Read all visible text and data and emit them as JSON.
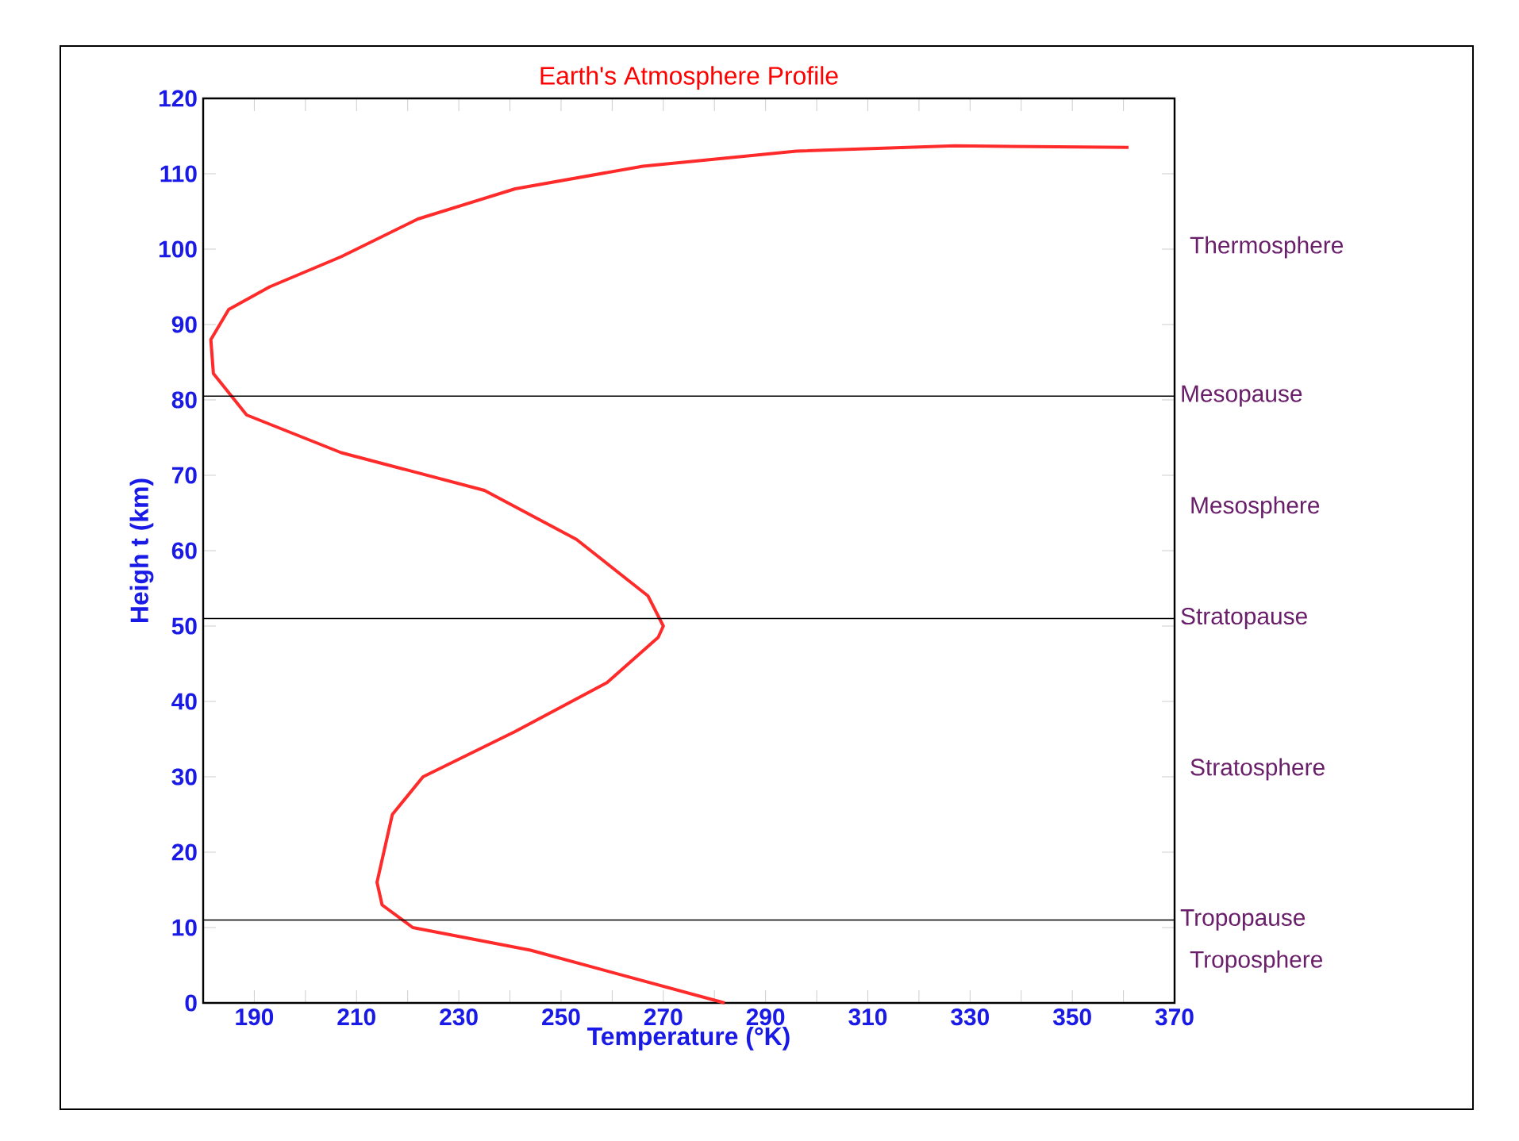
{
  "chart_data": {
    "type": "line",
    "title": "Earth's Atmosphere Profile",
    "xlabel": "Temperature (°K)",
    "ylabel": "Heigh t (km)",
    "xlim": [
      180,
      370
    ],
    "xticks": [
      190,
      210,
      230,
      250,
      270,
      290,
      310,
      330,
      350,
      370
    ],
    "ylim": [
      0,
      120
    ],
    "yticks": [
      0,
      10,
      20,
      30,
      40,
      50,
      60,
      70,
      80,
      90,
      100,
      110,
      120
    ],
    "series": [
      {
        "color": "#ff2a2a",
        "x": [
          282,
          244,
          221,
          215,
          214,
          217,
          223,
          241,
          259,
          269,
          270,
          267,
          253,
          235,
          207,
          188.5,
          182,
          181.5,
          185,
          193,
          207,
          222,
          241,
          266,
          296,
          327,
          361
        ],
        "values": [
          0,
          7,
          10,
          13,
          16,
          25,
          30,
          36,
          42.5,
          48.5,
          50,
          54,
          61.5,
          68,
          73,
          78,
          83.5,
          88,
          92,
          95,
          99,
          104,
          108,
          111,
          113,
          113.7,
          113.5
        ]
      }
    ],
    "ref_lines": [
      {
        "axis": "y",
        "value": 80.5,
        "label": "Mesopause"
      },
      {
        "axis": "y",
        "value": 51,
        "label": "Stratopause"
      },
      {
        "axis": "y",
        "value": 11,
        "label": "Tropopause"
      }
    ],
    "annotations": [
      "Thermosphere",
      "Mesosphere",
      "Stratosphere",
      "Troposphere"
    ]
  }
}
